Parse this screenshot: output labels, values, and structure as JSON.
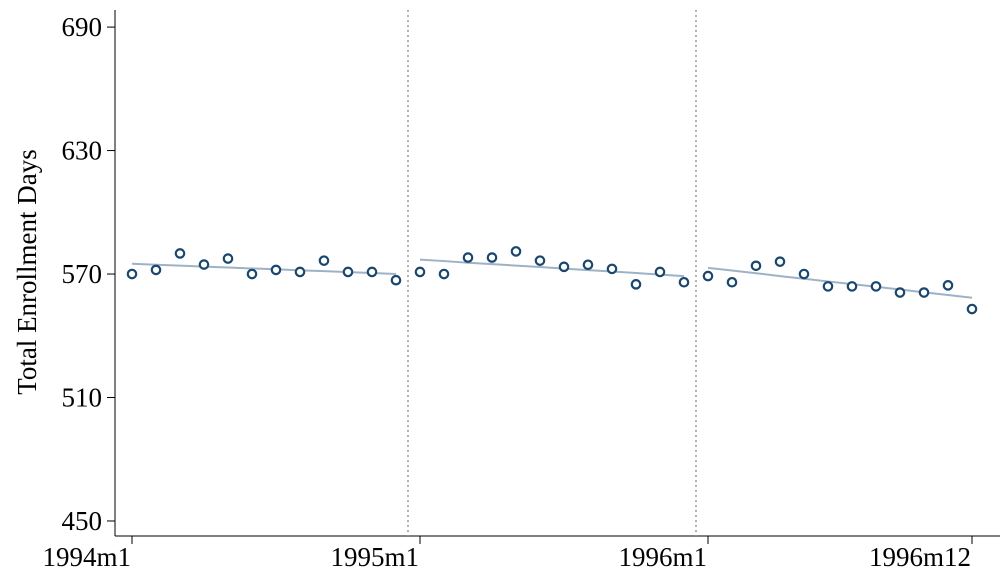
{
  "chart_data": {
    "type": "scatter",
    "y_label": "Total Enrollment Days",
    "categories": [
      "1994m1",
      null,
      null,
      null,
      null,
      null,
      null,
      null,
      null,
      null,
      null,
      null,
      "1995m1",
      null,
      null,
      null,
      null,
      null,
      null,
      null,
      null,
      null,
      null,
      null,
      "1996m1",
      null,
      null,
      null,
      null,
      null,
      null,
      null,
      null,
      null,
      null,
      "1996m12"
    ],
    "series": [
      {
        "type": "scatter",
        "color": "#1a476f",
        "values": [
          570,
          572,
          580,
          574.6,
          577.5,
          570,
          572,
          571,
          576.5,
          571,
          571,
          567,
          571,
          570,
          578,
          578,
          581,
          576.5,
          573.5,
          574.5,
          572.5,
          565,
          571,
          566,
          569,
          566,
          574,
          576,
          570,
          564,
          564,
          564,
          561,
          561,
          564.5,
          553
        ]
      },
      {
        "type": "line",
        "color": "#9eb2c6",
        "values": [
          575,
          574.5,
          574.1,
          573.6,
          573.2,
          572.7,
          572.3,
          571.8,
          571.4,
          570.9,
          570.5,
          570,
          null,
          null,
          null,
          null,
          null,
          null,
          null,
          null,
          null,
          null,
          null,
          null,
          null,
          null,
          null,
          null,
          null,
          null,
          null,
          null,
          null,
          null,
          null,
          null
        ]
      },
      {
        "type": "line",
        "color": "#9eb2c6",
        "values": [
          null,
          null,
          null,
          null,
          null,
          null,
          null,
          null,
          null,
          null,
          null,
          null,
          577,
          576.3,
          575.5,
          574.8,
          574.1,
          573.4,
          572.6,
          571.9,
          571.2,
          570.5,
          569.7,
          569,
          null,
          null,
          null,
          null,
          null,
          null,
          null,
          null,
          null,
          null,
          null,
          null
        ]
      },
      {
        "type": "line",
        "color": "#9eb2c6",
        "values": [
          null,
          null,
          null,
          null,
          null,
          null,
          null,
          null,
          null,
          null,
          null,
          null,
          null,
          null,
          null,
          null,
          null,
          null,
          null,
          null,
          null,
          null,
          null,
          null,
          573,
          571.7,
          570.4,
          569,
          567.7,
          566.4,
          565.1,
          563.8,
          562.5,
          561.1,
          559.8,
          558.5
        ]
      }
    ],
    "ylim": [
      442.7,
      698.3
    ],
    "yticks": [
      450,
      510,
      570,
      630,
      690
    ],
    "grid": false
  }
}
